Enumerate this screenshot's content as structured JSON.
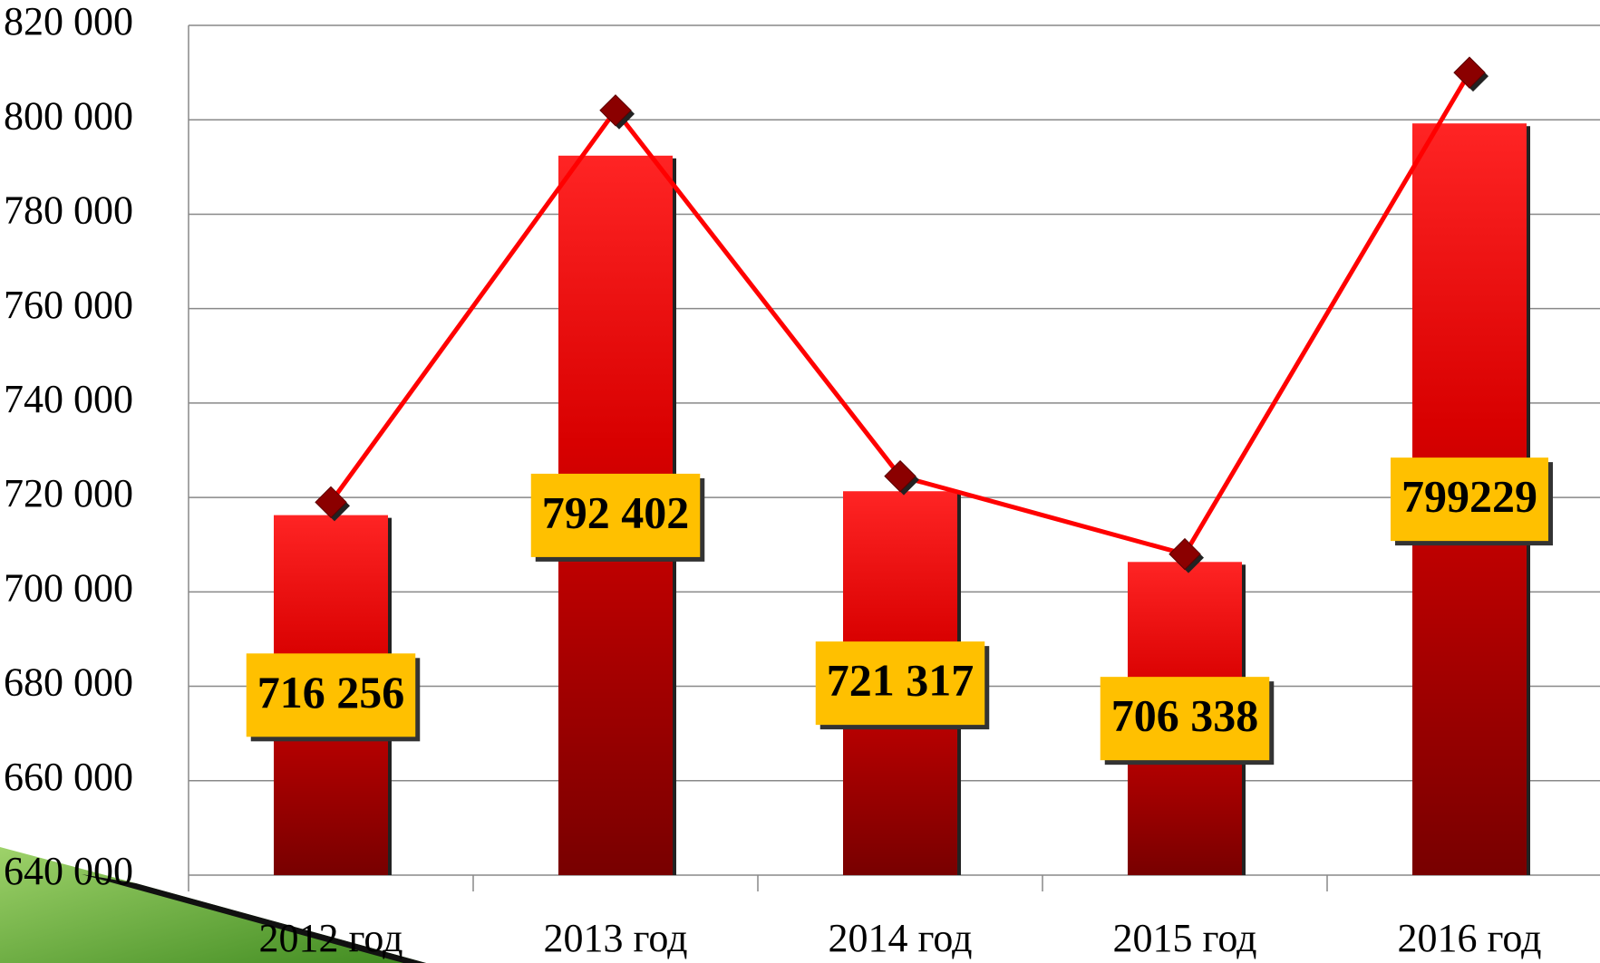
{
  "chart_data": {
    "type": "bar",
    "categories": [
      "2012 год",
      "2013 год",
      "2014 год",
      "2015 год",
      "2016 год"
    ],
    "series": [
      {
        "type": "bar",
        "color": "#c00000",
        "values": [
          716256,
          792402,
          721317,
          706338,
          799229
        ],
        "value_labels": [
          "716 256",
          "792 402",
          "721 317",
          "706 338",
          "799229"
        ]
      },
      {
        "type": "line",
        "color": "#ff0000",
        "marker_color": "#8b0000",
        "values": [
          719000,
          802000,
          724500,
          708000,
          810000
        ]
      }
    ],
    "ylim": [
      640000,
      820000
    ],
    "yticks": [
      {
        "value": 640000,
        "label": "640 000"
      },
      {
        "value": 660000,
        "label": "660 000"
      },
      {
        "value": 680000,
        "label": "680 000"
      },
      {
        "value": 700000,
        "label": "700 000"
      },
      {
        "value": 720000,
        "label": "720 000"
      },
      {
        "value": 740000,
        "label": "740 000"
      },
      {
        "value": 760000,
        "label": "760 000"
      },
      {
        "value": 780000,
        "label": "780 000"
      },
      {
        "value": 800000,
        "label": "800 000"
      },
      {
        "value": 820000,
        "label": "820 000"
      }
    ],
    "grid": true
  }
}
